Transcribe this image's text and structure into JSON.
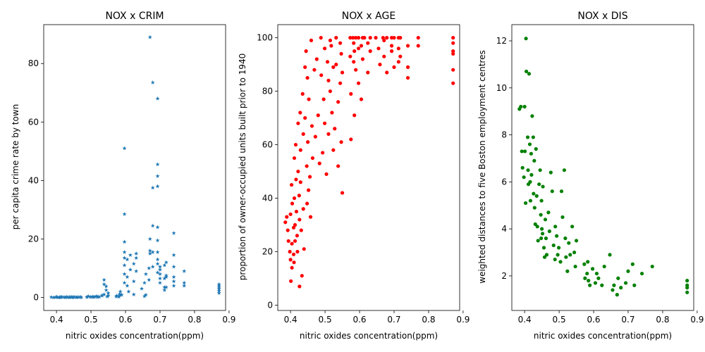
{
  "chart_data": [
    {
      "type": "scatter",
      "title": "NOX x CRIM",
      "xlabel": "nitric oxides concentration(ppm)",
      "ylabel": "per capita crime rate by town",
      "xlim": [
        0.363,
        0.89
      ],
      "ylim": [
        -4.45,
        93.3
      ],
      "xticks": [
        "0.4",
        "0.5",
        "0.6",
        "0.7",
        "0.8",
        "0.9"
      ],
      "xtick_values": [
        0.4,
        0.5,
        0.6,
        0.7,
        0.8,
        0.9
      ],
      "yticks": [
        "0",
        "20",
        "40",
        "60",
        "80"
      ],
      "ytick_values": [
        0,
        20,
        40,
        60,
        80
      ],
      "grid": false,
      "marker": "star",
      "color": "#1f77b4",
      "x": [
        0.385,
        0.392,
        0.398,
        0.401,
        0.404,
        0.409,
        0.411,
        0.413,
        0.416,
        0.422,
        0.426,
        0.429,
        0.433,
        0.437,
        0.438,
        0.442,
        0.445,
        0.448,
        0.449,
        0.453,
        0.458,
        0.46,
        0.464,
        0.469,
        0.472,
        0.488,
        0.489,
        0.493,
        0.499,
        0.504,
        0.507,
        0.51,
        0.515,
        0.518,
        0.52,
        0.524,
        0.532,
        0.538,
        0.544,
        0.547,
        0.55,
        0.538,
        0.544,
        0.55,
        0.538,
        0.532,
        0.573,
        0.575,
        0.581,
        0.583,
        0.585,
        0.585,
        0.589,
        0.597,
        0.597,
        0.597,
        0.597,
        0.597,
        0.597,
        0.605,
        0.605,
        0.605,
        0.609,
        0.614,
        0.614,
        0.624,
        0.624,
        0.624,
        0.631,
        0.631,
        0.631,
        0.647,
        0.655,
        0.655,
        0.659,
        0.659,
        0.668,
        0.668,
        0.671,
        0.671,
        0.671,
        0.679,
        0.679,
        0.679,
        0.693,
        0.693,
        0.693,
        0.693,
        0.693,
        0.693,
        0.693,
        0.7,
        0.7,
        0.7,
        0.7,
        0.7,
        0.713,
        0.713,
        0.713,
        0.713,
        0.718,
        0.718,
        0.718,
        0.74,
        0.74,
        0.74,
        0.74,
        0.74,
        0.77,
        0.77,
        0.77,
        0.871,
        0.871,
        0.871,
        0.871,
        0.871,
        0.871,
        0.693,
        0.693,
        0.693,
        0.679,
        0.679,
        0.671,
        0.597,
        0.597,
        0.718,
        0.74
      ],
      "y": [
        0.1,
        0.0,
        0.1,
        0.2,
        0.0,
        0.1,
        0.0,
        0.1,
        0.2,
        0.1,
        0.0,
        0.2,
        0.1,
        0.0,
        0.1,
        0.2,
        0.1,
        0.0,
        0.1,
        0.2,
        0.0,
        0.1,
        0.1,
        0.2,
        0.0,
        0.1,
        0.2,
        0.4,
        0.1,
        0.3,
        0.1,
        0.2,
        0.4,
        0.1,
        0.3,
        0.2,
        0.6,
        1.0,
        2.5,
        0.3,
        0.6,
        6.0,
        3.8,
        1.5,
        4.5,
        0.7,
        0.3,
        0.6,
        0.2,
        1.1,
        0.8,
        2.0,
        0.9,
        5.0,
        8.0,
        15.5,
        19.0,
        28.5,
        51.0,
        4.0,
        13.0,
        7.0,
        2.0,
        9.5,
        14.5,
        11.5,
        5.5,
        1.0,
        13.5,
        15.0,
        9.0,
        3.0,
        0.4,
        5.0,
        0.9,
        8.0,
        10.0,
        6.0,
        89.0,
        15.0,
        20.0,
        73.5,
        37.5,
        24.5,
        68.0,
        45.5,
        41.5,
        38.0,
        24.0,
        19.5,
        13.0,
        10.5,
        9.5,
        8.0,
        6.5,
        5.0,
        11.0,
        6.5,
        3.5,
        2.5,
        12.0,
        7.0,
        3.5,
        22.0,
        14.5,
        10.5,
        7.0,
        4.0,
        9.0,
        5.0,
        4.0,
        1.5,
        2.3,
        3.0,
        3.5,
        4.0,
        4.5,
        15.5,
        11.5,
        8.5,
        15.5,
        10.5,
        16.0,
        11.0,
        13.5,
        7.5,
        5.5
      ]
    },
    {
      "type": "scatter",
      "title": "NOX x AGE",
      "xlabel": "nitric oxides concentration(ppm)",
      "ylabel": "proportion of owner-occupied units built prior to 1940",
      "xlim": [
        0.363,
        0.89
      ],
      "ylim": [
        -1.98,
        104.9
      ],
      "xticks": [
        "0.4",
        "0.5",
        "0.6",
        "0.7",
        "0.8",
        "0.9"
      ],
      "xtick_values": [
        0.4,
        0.5,
        0.6,
        0.7,
        0.8,
        0.9
      ],
      "yticks": [
        "0",
        "20",
        "40",
        "60",
        "80",
        "100"
      ],
      "ytick_values": [
        0,
        20,
        40,
        60,
        80,
        100
      ],
      "grid": false,
      "marker": "circle",
      "color": "#ff0000",
      "x": [
        0.385,
        0.389,
        0.392,
        0.394,
        0.398,
        0.4,
        0.4,
        0.401,
        0.403,
        0.404,
        0.404,
        0.405,
        0.409,
        0.409,
        0.41,
        0.411,
        0.411,
        0.413,
        0.413,
        0.415,
        0.416,
        0.417,
        0.419,
        0.42,
        0.422,
        0.422,
        0.425,
        0.426,
        0.426,
        0.428,
        0.429,
        0.429,
        0.431,
        0.433,
        0.435,
        0.437,
        0.437,
        0.439,
        0.442,
        0.442,
        0.445,
        0.447,
        0.448,
        0.449,
        0.45,
        0.452,
        0.453,
        0.456,
        0.458,
        0.46,
        0.462,
        0.464,
        0.469,
        0.472,
        0.476,
        0.48,
        0.484,
        0.488,
        0.489,
        0.493,
        0.496,
        0.499,
        0.499,
        0.504,
        0.507,
        0.51,
        0.51,
        0.515,
        0.515,
        0.518,
        0.52,
        0.524,
        0.524,
        0.528,
        0.532,
        0.532,
        0.538,
        0.538,
        0.544,
        0.544,
        0.547,
        0.547,
        0.55,
        0.55,
        0.573,
        0.573,
        0.575,
        0.575,
        0.581,
        0.583,
        0.583,
        0.585,
        0.585,
        0.589,
        0.589,
        0.597,
        0.597,
        0.597,
        0.605,
        0.605,
        0.609,
        0.609,
        0.614,
        0.624,
        0.624,
        0.631,
        0.631,
        0.647,
        0.655,
        0.659,
        0.668,
        0.671,
        0.671,
        0.679,
        0.679,
        0.693,
        0.693,
        0.693,
        0.7,
        0.7,
        0.713,
        0.713,
        0.713,
        0.718,
        0.718,
        0.74,
        0.74,
        0.74,
        0.77,
        0.77,
        0.871,
        0.871,
        0.871,
        0.871,
        0.871,
        0.871
      ],
      "y": [
        31,
        33,
        28,
        24,
        20,
        34,
        17,
        9,
        45,
        23,
        14,
        38,
        29,
        19,
        16,
        55,
        40,
        30,
        24,
        60,
        47,
        35,
        26,
        20,
        68,
        50,
        41,
        32,
        7,
        72,
        58,
        46,
        28,
        11,
        79,
        64,
        36,
        21,
        89,
        70,
        95,
        52,
        38,
        85,
        61,
        43,
        77,
        48,
        33,
        99,
        67,
        55,
        88,
        63,
        92,
        71,
        53,
        100,
        86,
        57,
        77,
        96,
        68,
        49,
        91,
        84,
        64,
        99,
        80,
        97,
        72,
        58,
        89,
        66,
        100,
        90,
        52,
        76,
        98,
        83,
        61,
        94,
        87,
        42,
        100,
        93,
        62,
        79,
        100,
        91,
        98,
        71,
        95,
        100,
        88,
        96,
        83,
        100,
        97,
        77,
        100,
        92,
        100,
        98,
        87,
        100,
        95,
        100,
        96,
        90,
        100,
        93,
        99,
        100,
        87,
        100,
        95,
        97,
        100,
        89,
        100,
        91,
        96,
        100,
        93,
        89,
        97,
        85,
        100,
        97,
        98,
        100,
        88,
        83,
        95,
        94
      ],
      "y_note": ""
    },
    {
      "type": "scatter",
      "title": "NOX x DIS",
      "xlabel": "nitric oxides concentration(ppm)",
      "ylabel": "weighted distances to five Boston employment centres",
      "xlim": [
        0.363,
        0.89
      ],
      "ylim": [
        0.53,
        12.69
      ],
      "xticks": [
        "0.4",
        "0.5",
        "0.6",
        "0.7",
        "0.8",
        "0.9"
      ],
      "xtick_values": [
        0.4,
        0.5,
        0.6,
        0.7,
        0.8,
        0.9
      ],
      "yticks": [
        "2",
        "4",
        "6",
        "8",
        "10",
        "12"
      ],
      "ytick_values": [
        2,
        4,
        6,
        8,
        10,
        12
      ],
      "grid": false,
      "marker": "circle",
      "color": "#008000",
      "x": [
        0.385,
        0.389,
        0.392,
        0.394,
        0.398,
        0.4,
        0.401,
        0.403,
        0.404,
        0.405,
        0.409,
        0.41,
        0.411,
        0.413,
        0.415,
        0.416,
        0.417,
        0.419,
        0.42,
        0.422,
        0.425,
        0.426,
        0.428,
        0.429,
        0.431,
        0.433,
        0.435,
        0.437,
        0.439,
        0.442,
        0.445,
        0.447,
        0.448,
        0.449,
        0.45,
        0.452,
        0.453,
        0.456,
        0.458,
        0.46,
        0.462,
        0.464,
        0.469,
        0.472,
        0.476,
        0.48,
        0.484,
        0.488,
        0.489,
        0.493,
        0.496,
        0.499,
        0.504,
        0.507,
        0.51,
        0.515,
        0.518,
        0.52,
        0.524,
        0.528,
        0.532,
        0.538,
        0.544,
        0.547,
        0.55,
        0.573,
        0.575,
        0.581,
        0.583,
        0.585,
        0.589,
        0.597,
        0.605,
        0.609,
        0.614,
        0.624,
        0.631,
        0.647,
        0.655,
        0.659,
        0.668,
        0.671,
        0.679,
        0.693,
        0.7,
        0.713,
        0.718,
        0.74,
        0.77,
        0.871,
        0.871,
        0.871,
        0.871
      ],
      "y": [
        9.1,
        9.2,
        7.3,
        6.6,
        6.2,
        9.2,
        7.3,
        5.1,
        12.1,
        10.7,
        7.9,
        6.5,
        5.9,
        10.6,
        7.6,
        6.0,
        5.2,
        7.2,
        6.3,
        8.8,
        7.9,
        5.5,
        6.9,
        4.9,
        4.2,
        7.4,
        5.4,
        4.1,
        3.5,
        5.9,
        6.5,
        4.6,
        3.6,
        5.2,
        4.0,
        3.8,
        5.8,
        3.2,
        2.8,
        4.4,
        3.6,
        2.9,
        4.7,
        3.9,
        6.4,
        5.6,
        3.3,
        2.7,
        4.1,
        3.7,
        2.9,
        3.2,
        2.6,
        5.6,
        4.5,
        6.5,
        3.6,
        2.8,
        2.2,
        3.4,
        2.9,
        4.1,
        3.0,
        2.4,
        3.5,
        2.5,
        1.9,
        2.1,
        2.6,
        1.8,
        1.6,
        2.3,
        1.7,
        2.1,
        1.9,
        1.6,
        2.4,
        2.9,
        1.4,
        1.6,
        1.2,
        1.9,
        1.5,
        1.7,
        2.2,
        2.5,
        1.6,
        2.1,
        2.4,
        1.3,
        1.5,
        1.6,
        1.8
      ]
    }
  ]
}
